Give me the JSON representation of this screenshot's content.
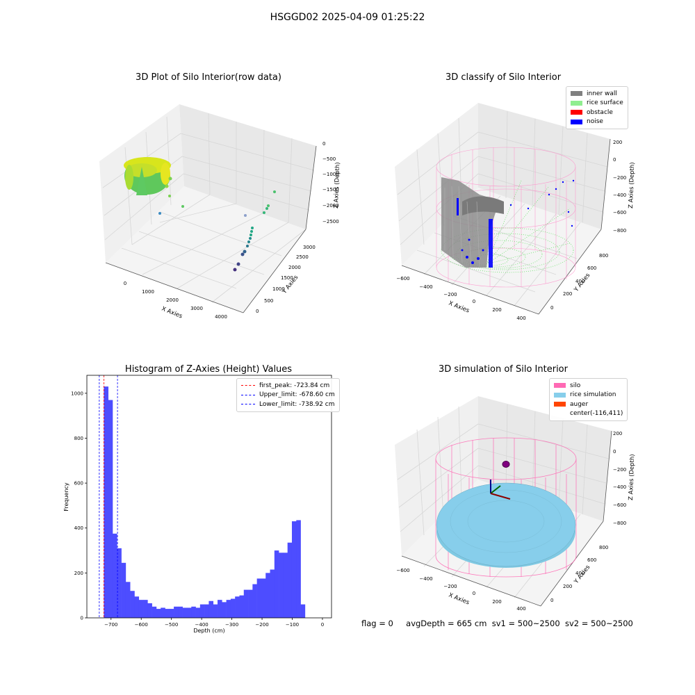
{
  "suptitle": "HSGGD02 2025-04-09 01:25:22",
  "footer": {
    "flag": "flag = 0",
    "avg": "avgDepth = 665 cm",
    "sv1": "sv1 = 500~2500",
    "sv2": "sv2 = 500~2500"
  },
  "colors": {
    "inner_wall": "#808080",
    "rice_surface": "#90ee90",
    "obstacle": "#ff0000",
    "noise": "#0000ff",
    "hist_bar": "#4d4dff",
    "silo": "#ff69b4",
    "rice_sim": "#87ceeb",
    "auger": "#ff4500"
  },
  "chart_data": [
    {
      "type": "scatter",
      "title": "3D Plot of Silo Interior(row data)",
      "xlabel": "X Axies",
      "ylabel": "Y Axies",
      "zlabel": "Z Axies (Depth)",
      "x_ticks": [
        "0",
        "1000",
        "2000",
        "3000",
        "4000"
      ],
      "y_ticks": [
        "0",
        "500",
        "1000",
        "1500",
        "2000",
        "2500",
        "3000"
      ],
      "z_ticks": [
        "0",
        "−500",
        "−1000",
        "−1500",
        "−2000",
        "−2500"
      ]
    },
    {
      "type": "scatter",
      "title": "3D classify of Silo Interior",
      "xlabel": "X Axies",
      "ylabel": "Y Axies",
      "zlabel": "Z Axies (Depth)",
      "x_ticks": [
        "−600",
        "−400",
        "−200",
        "0",
        "200",
        "400"
      ],
      "y_ticks": [
        "0",
        "200",
        "400",
        "600",
        "800"
      ],
      "z_ticks": [
        "200",
        "0",
        "−200",
        "−400",
        "−600",
        "−800"
      ],
      "legend": [
        "inner wall",
        "rice surface",
        "obstacle",
        "noise"
      ]
    },
    {
      "type": "bar",
      "title": "Histogram of Z-Axies (Height) Values",
      "xlabel": "Depth (cm)",
      "ylabel": "Frequency",
      "xlim": [
        -780,
        30
      ],
      "ylim": [
        0,
        1080
      ],
      "bin_start": -723.84,
      "bin_width": 14.48,
      "values": [
        1030,
        970,
        375,
        310,
        245,
        160,
        120,
        95,
        80,
        80,
        65,
        50,
        40,
        45,
        40,
        40,
        50,
        50,
        45,
        45,
        50,
        45,
        60,
        60,
        75,
        60,
        80,
        70,
        80,
        85,
        95,
        100,
        125,
        125,
        150,
        175,
        175,
        200,
        215,
        300,
        290,
        290,
        335,
        430,
        435,
        60
      ],
      "x_ticks": [
        -700,
        -600,
        -500,
        -400,
        -300,
        -200,
        -100,
        0
      ],
      "x_tick_labels": [
        "−700",
        "−600",
        "−500",
        "−400",
        "−300",
        "−200",
        "−100",
        "0"
      ],
      "y_ticks": [
        0,
        200,
        400,
        600,
        800,
        1000
      ],
      "y_tick_labels": [
        "0",
        "200",
        "400",
        "600",
        "800",
        "1000"
      ],
      "vlines": [
        {
          "x": -723.84,
          "color": "#ff0000",
          "label": "first_peak: -723.84 cm"
        },
        {
          "x": -678.6,
          "color": "#0000ff",
          "label": "Upper_limit: -678.60 cm"
        },
        {
          "x": -738.92,
          "color": "#0000ff",
          "label": "Lower_limit: -738.92 cm"
        }
      ],
      "legend_placement": "top-right"
    },
    {
      "type": "scatter",
      "title": "3D simulation of Silo Interior",
      "xlabel": "X Axies",
      "ylabel": "Y Axies",
      "zlabel": "Z Axies (Depth)",
      "x_ticks": [
        "−600",
        "−400",
        "−200",
        "0",
        "200",
        "400"
      ],
      "y_ticks": [
        "0",
        "200",
        "400",
        "600",
        "800"
      ],
      "z_ticks": [
        "200",
        "0",
        "−200",
        "−400",
        "−600",
        "−800"
      ],
      "legend": [
        "silo",
        "rice simulation",
        "auger",
        "center(-116,411)"
      ]
    }
  ]
}
